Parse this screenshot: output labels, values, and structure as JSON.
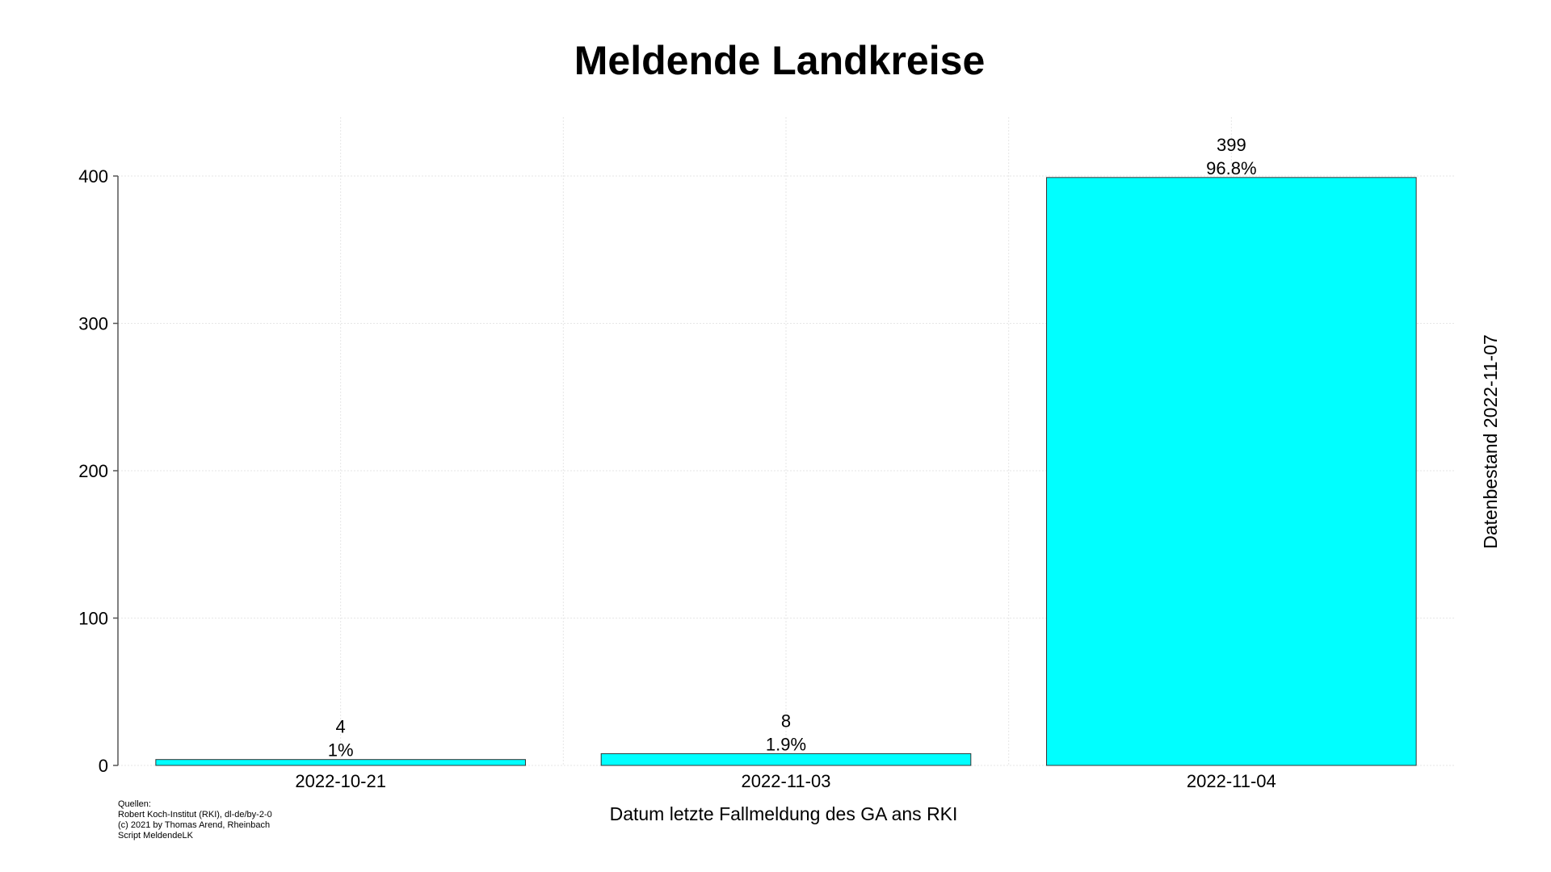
{
  "chart_data": {
    "type": "bar",
    "title": "Meldende Landkreise",
    "xlabel": "Datum letzte Fallmeldung des GA ans RKI",
    "ylabel": "",
    "side_label": "Datenbestand 2022-11-07",
    "categories": [
      "2022-10-21",
      "2022-11-03",
      "2022-11-04"
    ],
    "values": [
      4,
      8,
      399
    ],
    "percent_labels": [
      "1%",
      "1.9%",
      "96.8%"
    ],
    "ylim": [
      0,
      440
    ],
    "yticks": [
      0,
      100,
      200,
      300,
      400
    ],
    "grid": true,
    "bar_color": "#00FFFF",
    "bar_edge_color": "#333333"
  },
  "footer": {
    "lines": [
      "Quellen:",
      "Robert Koch-Institut (RKI), dl-de/by-2-0",
      "(c) 2021 by Thomas Arend, Rheinbach",
      "Script MeldendeLK"
    ]
  }
}
